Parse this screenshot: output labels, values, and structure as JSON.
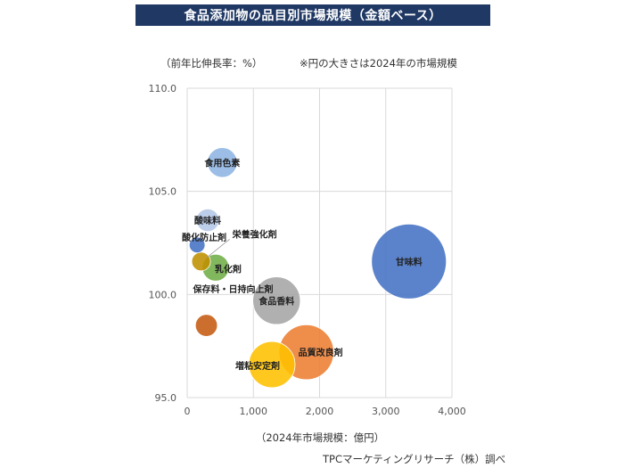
{
  "header": {
    "title": "食品添加物の品目別市場規模（金額ベース）"
  },
  "ylabel_text": "（前年比伸長率：%）",
  "note_text": "※円の大きさは2024年の市場規模",
  "xlabel_text": "（2024年市場規模：億円）",
  "source_text": "TPCマーケティングリサーチ（株）調べ",
  "chart_data": {
    "type": "scatter",
    "title": "食品添加物の品目別市場規模（金額ベース）",
    "xlabel": "（2024年市場規模：億円）",
    "ylabel": "（前年比伸長率：%）",
    "xlim": [
      0,
      4000
    ],
    "ylim": [
      95.0,
      110.0
    ],
    "xticks": [
      0,
      1000,
      2000,
      3000,
      4000
    ],
    "xtick_labels": [
      "0",
      "1,000",
      "2,000",
      "3,000",
      "4,000"
    ],
    "yticks": [
      95.0,
      100.0,
      105.0,
      110.0
    ],
    "ytick_labels": [
      "95.0",
      "100.0",
      "105.0",
      "110.0"
    ],
    "grid": true,
    "points": [
      {
        "name": "食用色素",
        "x": 530,
        "y": 106.4,
        "color": "#8eb4e3"
      },
      {
        "name": "酸味料",
        "x": 310,
        "y": 103.6,
        "color": "#b4c7e7"
      },
      {
        "name": "酸化防止剤",
        "x": 150,
        "y": 102.4,
        "color": "#4472c4"
      },
      {
        "name": "栄養強化剤",
        "x": 210,
        "y": 101.6,
        "color": "#bf9000"
      },
      {
        "name": "乳化剤",
        "x": 430,
        "y": 101.3,
        "color": "#70ad47"
      },
      {
        "name": "保存料・日持向上剤",
        "x": 290,
        "y": 98.5,
        "color": "#c55a11"
      },
      {
        "name": "食品香料",
        "x": 1350,
        "y": 99.7,
        "color": "#a5a5a5"
      },
      {
        "name": "品質改良剤",
        "x": 1800,
        "y": 97.2,
        "color": "#ed7d31"
      },
      {
        "name": "増粘安定剤",
        "x": 1280,
        "y": 96.6,
        "color": "#ffc000"
      },
      {
        "name": "甘味料",
        "x": 3350,
        "y": 101.6,
        "color": "#4472c4"
      }
    ]
  }
}
